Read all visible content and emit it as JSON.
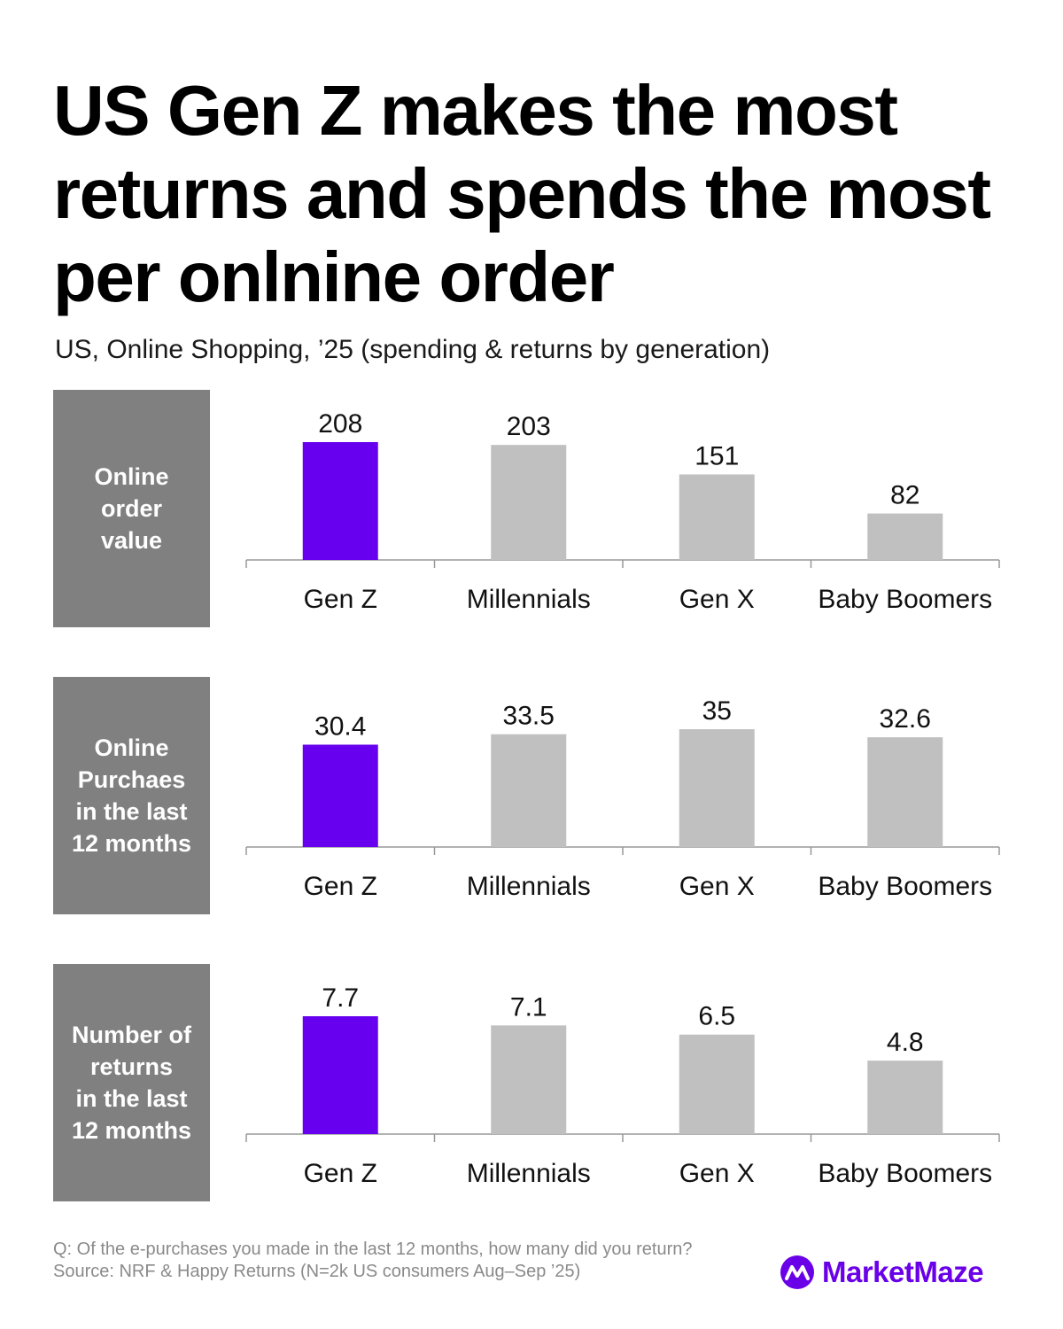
{
  "title": "US Gen Z makes the most returns and spends the most per onlnine order",
  "subtitle": "US, Online Shopping, ’25 (spending & returns by generation)",
  "colors": {
    "highlight": "#6600ee",
    "bar": "#c0c0c0",
    "panel_label_bg": "#808080",
    "axis": "#999999"
  },
  "chart_data": [
    {
      "type": "bar",
      "panel_label": "Online\norder\nvalue",
      "categories": [
        "Gen Z",
        "Millennials",
        "Gen X",
        "Baby Boomers"
      ],
      "values": [
        208,
        203,
        151,
        82
      ],
      "value_labels": [
        "208",
        "203",
        "151",
        "82"
      ],
      "highlight_category": "Gen Z",
      "ylim": [
        0,
        208
      ]
    },
    {
      "type": "bar",
      "panel_label": "Online\nPurchaes\nin the last\n12 months",
      "categories": [
        "Gen Z",
        "Millennials",
        "Gen X",
        "Baby Boomers"
      ],
      "values": [
        30.4,
        33.5,
        35,
        32.6
      ],
      "value_labels": [
        "30.4",
        "33.5",
        "35",
        "32.6"
      ],
      "highlight_category": "Gen Z",
      "ylim": [
        0,
        35
      ]
    },
    {
      "type": "bar",
      "panel_label": "Number of\nreturns\nin the last\n12 months",
      "categories": [
        "Gen Z",
        "Millennials",
        "Gen X",
        "Baby Boomers"
      ],
      "values": [
        7.7,
        7.1,
        6.5,
        4.8
      ],
      "value_labels": [
        "7.7",
        "7.1",
        "6.5",
        "4.8"
      ],
      "highlight_category": "Gen Z",
      "ylim": [
        0,
        7.7
      ]
    }
  ],
  "footnote": {
    "question": "Q: Of the e-purchases you made in the last 12 months, how many did you return?",
    "source": "Source: NRF & Happy Returns (N=2k US consumers Aug–Sep ’25)"
  },
  "brand": {
    "name": "MarketMaze",
    "logo_icon": "marketmaze-logo-icon"
  }
}
